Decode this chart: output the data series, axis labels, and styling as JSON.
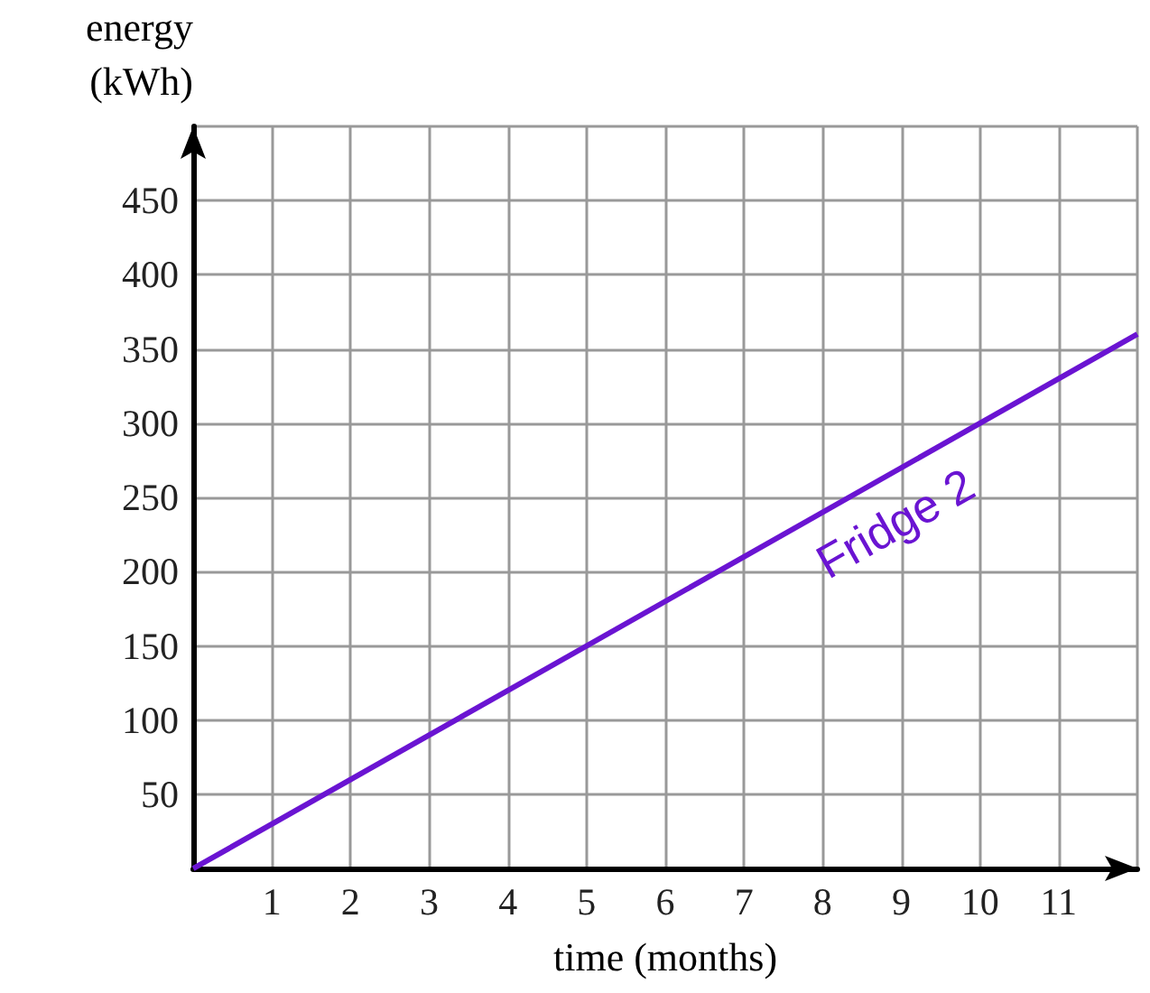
{
  "chart_data": {
    "type": "line",
    "xlabel": "time (months)",
    "ylabel": "energy\n(kWh)",
    "x": [
      0,
      12
    ],
    "series": [
      {
        "name": "Fridge 2",
        "color": "#6a14d2",
        "values": [
          0,
          360
        ]
      }
    ],
    "xlim": [
      0,
      12
    ],
    "xticks": [
      1,
      2,
      3,
      4,
      5,
      6,
      7,
      8,
      9,
      10,
      11,
      {
        "value": 12,
        "label": null
      }
    ],
    "ylim": [
      0,
      500
    ],
    "yticks": [
      50,
      100,
      150,
      200,
      250,
      300,
      350,
      400,
      450,
      {
        "value": 500,
        "label": null
      }
    ],
    "grid": true,
    "marker": "none",
    "legend": false
  }
}
